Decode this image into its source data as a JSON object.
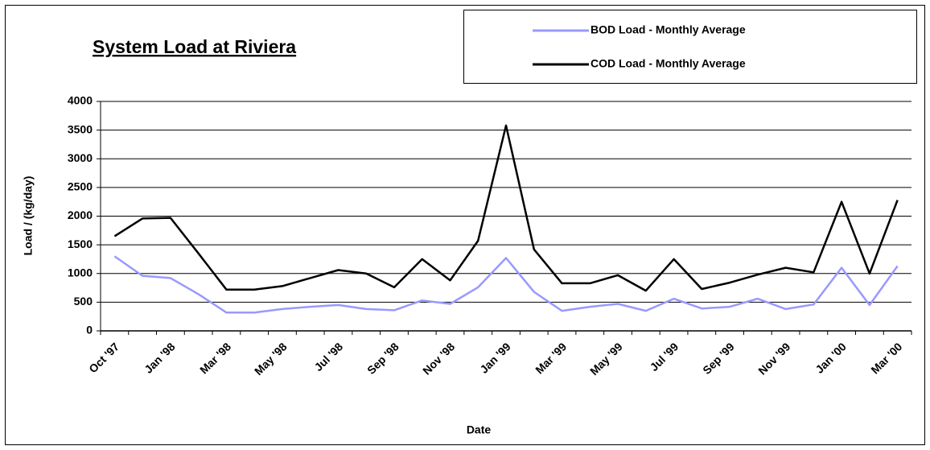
{
  "chart_data": {
    "type": "line",
    "title": "System Load at Riviera",
    "x_label": "Date",
    "y_label": "Load / (kg/day)",
    "categories": [
      "Oct '97",
      null,
      "Jan '98",
      null,
      "Mar '98",
      null,
      "May '98",
      null,
      "Jul '98",
      null,
      "Sep '98",
      null,
      "Nov '98",
      null,
      "Jan '99",
      null,
      "Mar '99",
      null,
      "May '99",
      null,
      "Jul '99",
      null,
      "Sep '99",
      null,
      "Nov '99",
      null,
      "Jan '00",
      null,
      "Mar '00"
    ],
    "series": [
      {
        "name": "BOD Load - Monthly Average",
        "color": "#9999ff",
        "values": [
          1300,
          960,
          920,
          640,
          320,
          320,
          380,
          420,
          450,
          380,
          360,
          530,
          470,
          760,
          1270,
          680,
          350,
          420,
          470,
          350,
          560,
          390,
          420,
          560,
          380,
          460,
          1100,
          450,
          1130
        ]
      },
      {
        "name": "COD Load - Monthly Average",
        "color": "#000000",
        "values": [
          1650,
          1960,
          1970,
          1350,
          720,
          720,
          780,
          920,
          1060,
          1000,
          760,
          1250,
          880,
          1570,
          3580,
          1420,
          830,
          830,
          970,
          700,
          1250,
          730,
          840,
          980,
          1100,
          1020,
          2250,
          1000,
          2280
        ]
      }
    ],
    "ylim": [
      0,
      4000
    ],
    "yticks": [
      0,
      500,
      1000,
      1500,
      2000,
      2500,
      3000,
      3500,
      4000
    ],
    "grid": true,
    "legend": "upper right"
  }
}
